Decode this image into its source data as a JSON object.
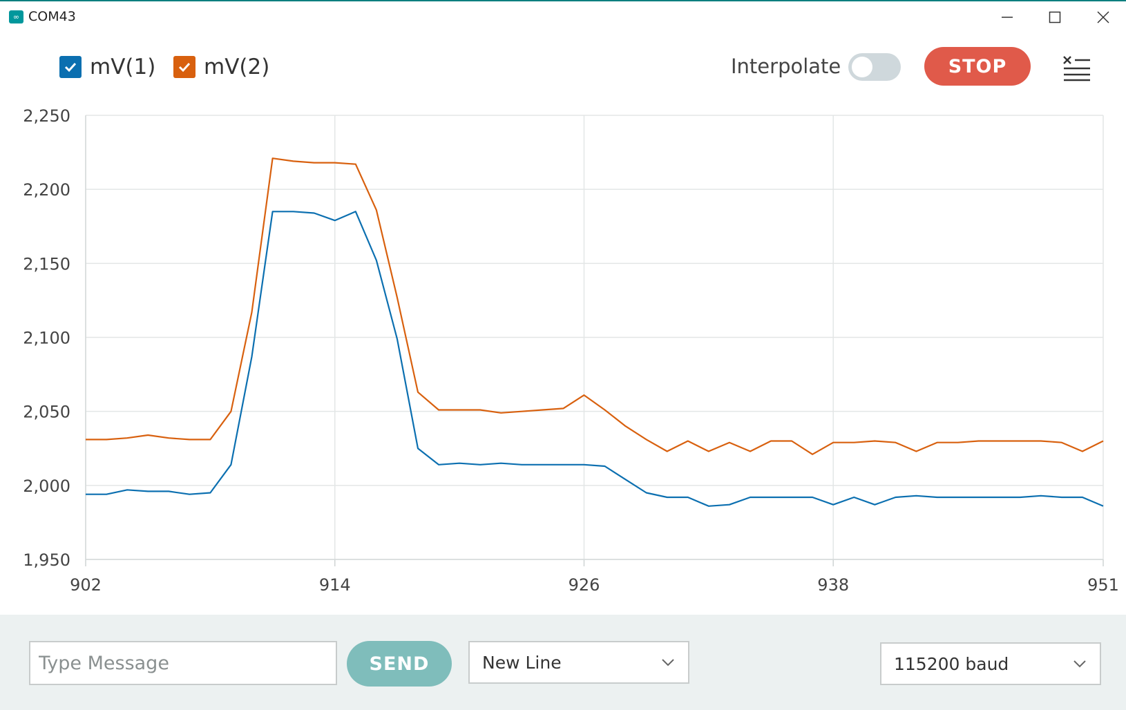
{
  "window": {
    "title": "COM43",
    "icon": "arduino-infinity-icon"
  },
  "legend": {
    "series": [
      {
        "label": "mV(1)",
        "color": "#0b6fb0",
        "checked": true
      },
      {
        "label": "mV(2)",
        "color": "#d8600e",
        "checked": true
      }
    ]
  },
  "controls": {
    "interpolate_label": "Interpolate",
    "interpolate_on": false,
    "stop_label": "STOP"
  },
  "footer": {
    "message_placeholder": "Type Message",
    "send_label": "SEND",
    "line_ending": "New Line",
    "baud": "115200 baud"
  },
  "chart_data": {
    "type": "line",
    "title": "",
    "xlabel": "",
    "ylabel": "",
    "xlim": [
      902,
      951
    ],
    "ylim": [
      1950,
      2250
    ],
    "x_ticks": [
      {
        "value": 902,
        "label": "902"
      },
      {
        "value": 914,
        "label": "914"
      },
      {
        "value": 926,
        "label": "926"
      },
      {
        "value": 938,
        "label": "938"
      },
      {
        "value": 951,
        "label": "951"
      }
    ],
    "y_ticks": [
      {
        "value": 2250,
        "label": "2,250"
      },
      {
        "value": 2200,
        "label": "2,200"
      },
      {
        "value": 2150,
        "label": "2,150"
      },
      {
        "value": 2100,
        "label": "2,100"
      },
      {
        "value": 2050,
        "label": "2,050"
      },
      {
        "value": 2000,
        "label": "2,000"
      },
      {
        "value": 1950,
        "label": "1,950"
      }
    ],
    "grid": true,
    "x": [
      902,
      903,
      904,
      905,
      906,
      907,
      908,
      909,
      910,
      911,
      912,
      913,
      914,
      915,
      916,
      917,
      918,
      919,
      920,
      921,
      922,
      923,
      924,
      925,
      926,
      927,
      928,
      929,
      930,
      931,
      932,
      933,
      934,
      935,
      936,
      937,
      938,
      939,
      940,
      941,
      942,
      943,
      944,
      945,
      946,
      947,
      948,
      949,
      950,
      951
    ],
    "series": [
      {
        "name": "mV(1)",
        "color": "#0b6fb0",
        "values": [
          1994,
          1994,
          1997,
          1996,
          1996,
          1994,
          1995,
          2014,
          2087,
          2185,
          2185,
          2184,
          2179,
          2185,
          2152,
          2099,
          2025,
          2014,
          2015,
          2014,
          2015,
          2014,
          2014,
          2014,
          2014,
          2013,
          2004,
          1995,
          1992,
          1992,
          1986,
          1987,
          1992,
          1992,
          1992,
          1992,
          1987,
          1992,
          1987,
          1992,
          1993,
          1992,
          1992,
          1992,
          1992,
          1992,
          1993,
          1992,
          1992,
          1986
        ]
      },
      {
        "name": "mV(2)",
        "color": "#d8600e",
        "values": [
          2031,
          2031,
          2032,
          2034,
          2032,
          2031,
          2031,
          2050,
          2117,
          2221,
          2219,
          2218,
          2218,
          2217,
          2186,
          2127,
          2063,
          2051,
          2051,
          2051,
          2049,
          2050,
          2051,
          2052,
          2061,
          2051,
          2040,
          2031,
          2023,
          2030,
          2023,
          2029,
          2023,
          2030,
          2030,
          2021,
          2029,
          2029,
          2030,
          2029,
          2023,
          2029,
          2029,
          2030,
          2030,
          2030,
          2030,
          2029,
          2023,
          2030
        ]
      }
    ]
  }
}
